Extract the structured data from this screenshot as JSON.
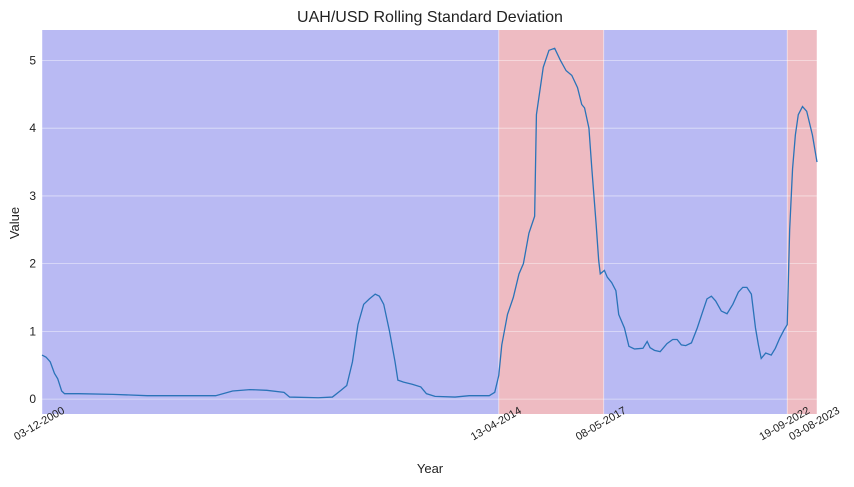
{
  "chart_data": {
    "type": "line",
    "title": "UAH/USD Rolling Standard Deviation",
    "xlabel": "Year",
    "ylabel": "Value",
    "xlim": [
      "2000-12-03",
      "2023-08-03"
    ],
    "ylim": [
      -0.22,
      5.45
    ],
    "grid": true,
    "y_ticks": [
      0,
      1,
      2,
      3,
      4,
      5
    ],
    "x_ticks": [
      {
        "date": "2000-12-03",
        "label": "03-12-2000"
      },
      {
        "date": "2014-04-13",
        "label": "13-04-2014"
      },
      {
        "date": "2017-05-08",
        "label": "08-05-2017"
      },
      {
        "date": "2022-09-19",
        "label": "19-09-2022"
      },
      {
        "date": "2023-08-03",
        "label": "03-08-2023"
      }
    ],
    "regimes": [
      {
        "start": "2000-12-03",
        "end": "2014-04-13",
        "color": "#b9baf3"
      },
      {
        "start": "2014-04-13",
        "end": "2017-05-08",
        "color": "#eebbc2"
      },
      {
        "start": "2017-05-08",
        "end": "2022-09-19",
        "color": "#b9baf3"
      },
      {
        "start": "2022-09-19",
        "end": "2023-08-03",
        "color": "#eebbc2"
      }
    ],
    "line_color": "#2a73b8",
    "series": [
      {
        "values": [
          [
            "2000-12-03",
            0.65
          ],
          [
            "2001-01-15",
            0.62
          ],
          [
            "2001-03-01",
            0.55
          ],
          [
            "2001-04-15",
            0.38
          ],
          [
            "2001-05-20",
            0.3
          ],
          [
            "2001-07-01",
            0.12
          ],
          [
            "2001-08-01",
            0.08
          ],
          [
            "2002-01-01",
            0.08
          ],
          [
            "2003-01-01",
            0.07
          ],
          [
            "2004-01-01",
            0.05
          ],
          [
            "2005-01-01",
            0.05
          ],
          [
            "2006-01-01",
            0.05
          ],
          [
            "2006-07-01",
            0.12
          ],
          [
            "2007-01-01",
            0.14
          ],
          [
            "2007-07-01",
            0.13
          ],
          [
            "2008-01-01",
            0.1
          ],
          [
            "2008-03-01",
            0.03
          ],
          [
            "2009-01-01",
            0.02
          ],
          [
            "2009-06-01",
            0.03
          ],
          [
            "2009-09-01",
            0.13
          ],
          [
            "2009-11-01",
            0.2
          ],
          [
            "2010-01-01",
            0.55
          ],
          [
            "2010-03-01",
            1.1
          ],
          [
            "2010-05-01",
            1.4
          ],
          [
            "2010-07-01",
            1.48
          ],
          [
            "2010-09-01",
            1.55
          ],
          [
            "2010-10-15",
            1.52
          ],
          [
            "2010-12-01",
            1.4
          ],
          [
            "2011-02-01",
            1.0
          ],
          [
            "2011-04-01",
            0.55
          ],
          [
            "2011-05-01",
            0.28
          ],
          [
            "2011-07-01",
            0.25
          ],
          [
            "2011-10-01",
            0.22
          ],
          [
            "2012-01-01",
            0.18
          ],
          [
            "2012-03-01",
            0.08
          ],
          [
            "2012-06-01",
            0.04
          ],
          [
            "2013-01-01",
            0.03
          ],
          [
            "2013-06-01",
            0.05
          ],
          [
            "2014-01-01",
            0.05
          ],
          [
            "2014-03-01",
            0.1
          ],
          [
            "2014-04-13",
            0.35
          ],
          [
            "2014-05-15",
            0.8
          ],
          [
            "2014-07-15",
            1.25
          ],
          [
            "2014-09-15",
            1.5
          ],
          [
            "2014-11-15",
            1.85
          ],
          [
            "2015-01-01",
            2.0
          ],
          [
            "2015-03-01",
            2.45
          ],
          [
            "2015-05-01",
            2.7
          ],
          [
            "2015-05-20",
            4.2
          ],
          [
            "2015-08-01",
            4.9
          ],
          [
            "2015-10-01",
            5.15
          ],
          [
            "2015-12-01",
            5.18
          ],
          [
            "2016-02-01",
            5.0
          ],
          [
            "2016-04-01",
            4.85
          ],
          [
            "2016-06-01",
            4.78
          ],
          [
            "2016-08-01",
            4.6
          ],
          [
            "2016-09-15",
            4.35
          ],
          [
            "2016-10-15",
            4.3
          ],
          [
            "2016-12-01",
            4.0
          ],
          [
            "2017-01-01",
            3.4
          ],
          [
            "2017-02-15",
            2.6
          ],
          [
            "2017-03-15",
            2.05
          ],
          [
            "2017-04-01",
            1.85
          ],
          [
            "2017-05-15",
            1.9
          ],
          [
            "2017-06-15",
            1.8
          ],
          [
            "2017-08-01",
            1.72
          ],
          [
            "2017-09-15",
            1.6
          ],
          [
            "2017-10-15",
            1.25
          ],
          [
            "2017-12-15",
            1.05
          ],
          [
            "2018-02-01",
            0.78
          ],
          [
            "2018-04-01",
            0.74
          ],
          [
            "2018-07-01",
            0.75
          ],
          [
            "2018-08-15",
            0.85
          ],
          [
            "2018-09-15",
            0.76
          ],
          [
            "2018-11-01",
            0.72
          ],
          [
            "2019-01-01",
            0.7
          ],
          [
            "2019-03-15",
            0.82
          ],
          [
            "2019-05-15",
            0.88
          ],
          [
            "2019-07-01",
            0.88
          ],
          [
            "2019-08-15",
            0.8
          ],
          [
            "2019-10-01",
            0.79
          ],
          [
            "2019-12-01",
            0.83
          ],
          [
            "2020-02-01",
            1.05
          ],
          [
            "2020-04-01",
            1.3
          ],
          [
            "2020-05-15",
            1.48
          ],
          [
            "2020-07-01",
            1.52
          ],
          [
            "2020-08-15",
            1.45
          ],
          [
            "2020-10-15",
            1.3
          ],
          [
            "2020-12-15",
            1.26
          ],
          [
            "2021-02-15",
            1.4
          ],
          [
            "2021-04-15",
            1.58
          ],
          [
            "2021-06-01",
            1.65
          ],
          [
            "2021-07-15",
            1.65
          ],
          [
            "2021-09-01",
            1.55
          ],
          [
            "2021-10-15",
            1.05
          ],
          [
            "2021-11-15",
            0.8
          ],
          [
            "2021-12-15",
            0.6
          ],
          [
            "2022-02-01",
            0.68
          ],
          [
            "2022-04-01",
            0.65
          ],
          [
            "2022-05-15",
            0.75
          ],
          [
            "2022-07-01",
            0.9
          ],
          [
            "2022-08-15",
            1.02
          ],
          [
            "2022-09-19",
            1.1
          ],
          [
            "2022-10-15",
            2.5
          ],
          [
            "2022-11-15",
            3.4
          ],
          [
            "2022-12-15",
            3.9
          ],
          [
            "2023-01-15",
            4.2
          ],
          [
            "2023-03-01",
            4.32
          ],
          [
            "2023-04-15",
            4.25
          ],
          [
            "2023-06-15",
            3.9
          ],
          [
            "2023-08-03",
            3.5
          ]
        ]
      }
    ]
  }
}
